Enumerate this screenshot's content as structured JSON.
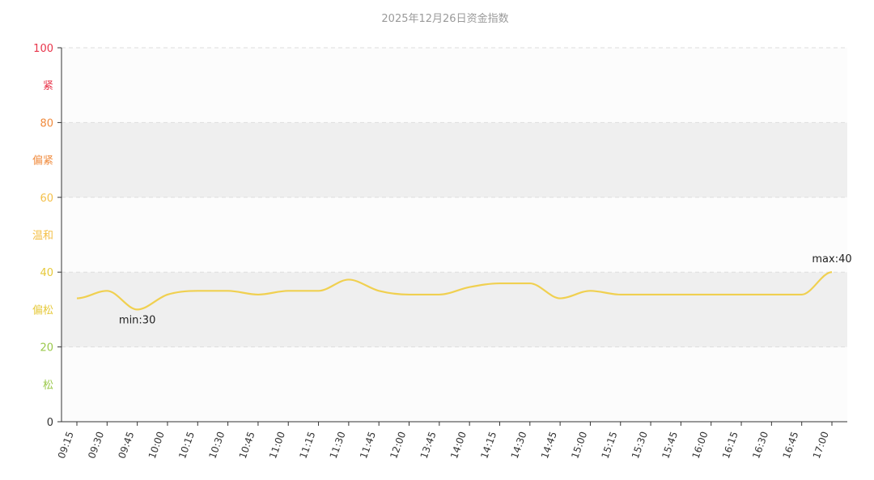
{
  "chart_data": {
    "type": "line",
    "title": "2025年12月26日资金指数",
    "ylim": [
      0,
      100
    ],
    "y_ticks": [
      {
        "value": 0,
        "label": "0",
        "color": "#333333"
      },
      {
        "value": 20,
        "label": "20",
        "color": "#9ac84a"
      },
      {
        "value": 40,
        "label": "40",
        "color": "#e6c93a"
      },
      {
        "value": 60,
        "label": "60",
        "color": "#f4c04a"
      },
      {
        "value": 80,
        "label": "80",
        "color": "#f08a3c"
      },
      {
        "value": 100,
        "label": "100",
        "color": "#e8344a"
      }
    ],
    "zones": [
      {
        "from": 0,
        "to": 20,
        "label": "松",
        "color": "#9ac84a",
        "fill": "#fcfcfc"
      },
      {
        "from": 20,
        "to": 40,
        "label": "偏松",
        "color": "#e6c93a",
        "fill": "#efefef"
      },
      {
        "from": 40,
        "to": 60,
        "label": "温和",
        "color": "#f4c04a",
        "fill": "#fcfcfc"
      },
      {
        "from": 60,
        "to": 80,
        "label": "偏紧",
        "color": "#f08a3c",
        "fill": "#efefef"
      },
      {
        "from": 80,
        "to": 100,
        "label": "紧",
        "color": "#e8344a",
        "fill": "#fcfcfc"
      }
    ],
    "grid": true,
    "line_color": "#f0d050",
    "categories": [
      "09:15",
      "09:30",
      "09:45",
      "10:00",
      "10:15",
      "10:30",
      "10:45",
      "11:00",
      "11:15",
      "11:30",
      "11:45",
      "12:00",
      "13:45",
      "14:00",
      "14:15",
      "14:30",
      "14:45",
      "15:00",
      "15:15",
      "15:30",
      "15:45",
      "16:00",
      "16:15",
      "16:30",
      "16:45",
      "17:00"
    ],
    "values": [
      33,
      35,
      30,
      34,
      35,
      35,
      34,
      35,
      35,
      38,
      35,
      34,
      34,
      36,
      37,
      37,
      33,
      35,
      34,
      34,
      34,
      34,
      34,
      34,
      34,
      40
    ],
    "annotations": [
      {
        "label": "min:30",
        "index": 2,
        "value": 30,
        "position": "below"
      },
      {
        "label": "max:40",
        "index": 25,
        "value": 40,
        "position": "above"
      }
    ]
  }
}
